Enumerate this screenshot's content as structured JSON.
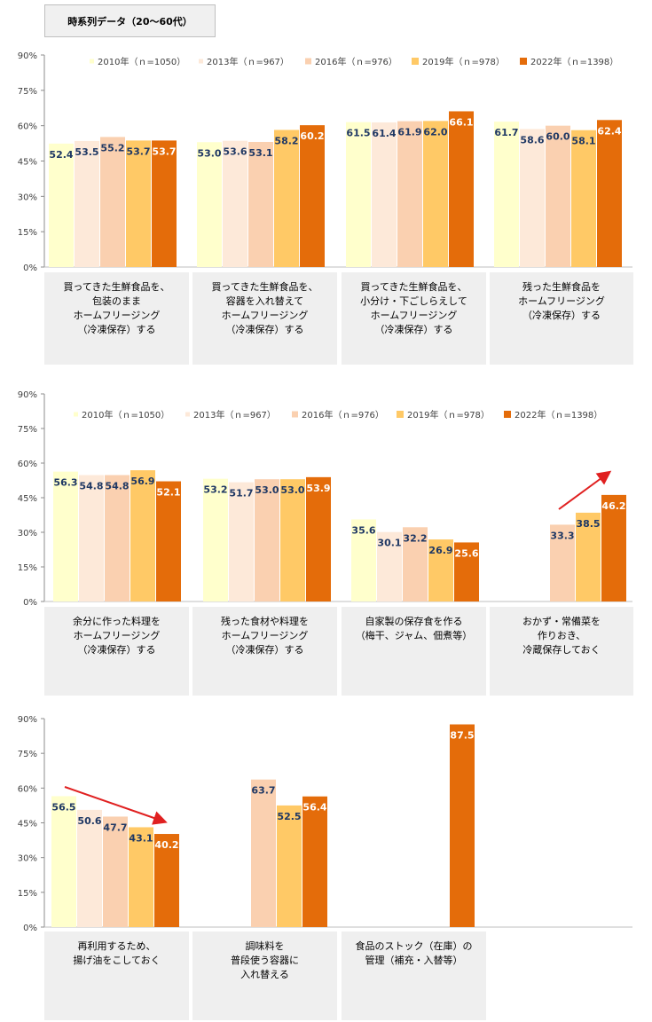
{
  "page_title": "時系列データ（20～60代）",
  "colors": {
    "s2010": "#FFFFCC",
    "s2013": "#FDE9D9",
    "s2016": "#FAD0B0",
    "s2019": "#FFC966",
    "s2022": "#E46C0A",
    "label_dark": "#1F3864",
    "label_light": "#FFFFFF",
    "category_bg": "#EFEFEF",
    "arrow": "#E02020"
  },
  "chart_data": [
    {
      "type": "bar",
      "title": "",
      "ylim": [
        0,
        90
      ],
      "yticks": [
        "0%",
        "15%",
        "30%",
        "45%",
        "60%",
        "75%",
        "90%"
      ],
      "legend": [
        "2010年（ｎ=1050）",
        "2013年（ｎ=967）",
        "2016年（ｎ=976）",
        "2019年（ｎ=978）",
        "2022年（ｎ=1398）"
      ],
      "categories": [
        [
          "買ってきた生鮮食品を、",
          "包装のまま",
          "ホームフリージング",
          "（冷凍保存）する"
        ],
        [
          "買ってきた生鮮食品を、",
          "容器を入れ替えて",
          "ホームフリージング",
          "（冷凍保存）する"
        ],
        [
          "買ってきた生鮮食品を、",
          "小分け・下ごしらえして",
          "ホームフリージング",
          "（冷凍保存）する"
        ],
        [
          "残った生鮮食品を",
          "ホームフリージング",
          "（冷凍保存）する"
        ]
      ],
      "series": [
        {
          "name": "2010年（ｎ=1050）",
          "values": [
            52.4,
            53.0,
            61.5,
            61.7
          ]
        },
        {
          "name": "2013年（ｎ=967）",
          "values": [
            53.5,
            53.6,
            61.4,
            58.6
          ]
        },
        {
          "name": "2016年（ｎ=976）",
          "values": [
            55.2,
            53.1,
            61.9,
            60.0
          ]
        },
        {
          "name": "2019年（ｎ=978）",
          "values": [
            53.7,
            58.2,
            62.0,
            58.1
          ]
        },
        {
          "name": "2022年（ｎ=1398）",
          "values": [
            53.7,
            60.2,
            66.1,
            62.4
          ]
        }
      ],
      "labels": [
        [
          "52.4",
          "53.0",
          "61.5",
          "61.7"
        ],
        [
          "53.5",
          "53.6",
          "61.4",
          "58.6"
        ],
        [
          "55.2",
          "53.1",
          "61.9",
          "60.0"
        ],
        [
          "53.7",
          "58.2",
          "62.0",
          "58.1"
        ],
        [
          "53.7",
          "60.2",
          "66.1",
          "62.4"
        ]
      ]
    },
    {
      "type": "bar",
      "title": "",
      "ylim": [
        0,
        90
      ],
      "yticks": [
        "0%",
        "15%",
        "30%",
        "45%",
        "60%",
        "75%",
        "90%"
      ],
      "legend": [
        "2010年（ｎ=1050）",
        "2013年（ｎ=967）",
        "2016年（ｎ=976）",
        "2019年（ｎ=978）",
        "2022年（ｎ=1398）"
      ],
      "categories": [
        [
          "余分に作った料理を",
          "ホームフリージング",
          "（冷凍保存）する"
        ],
        [
          "残った食材や料理を",
          "ホームフリージング",
          "（冷凍保存）する"
        ],
        [
          "自家製の保存食を作る",
          "（梅干、ジャム、佃煮等）"
        ],
        [
          "おかず・常備菜を",
          "作りおき、",
          "冷蔵保存しておく"
        ]
      ],
      "series": [
        {
          "name": "2010年（ｎ=1050）",
          "values": [
            56.3,
            53.2,
            35.6,
            null
          ]
        },
        {
          "name": "2013年（ｎ=967）",
          "values": [
            54.8,
            51.7,
            30.1,
            null
          ]
        },
        {
          "name": "2016年（ｎ=976）",
          "values": [
            54.8,
            53.0,
            32.2,
            33.3
          ]
        },
        {
          "name": "2019年（ｎ=978）",
          "values": [
            56.9,
            53.0,
            26.9,
            38.5
          ]
        },
        {
          "name": "2022年（ｎ=1398）",
          "values": [
            52.1,
            53.9,
            25.6,
            46.2
          ]
        }
      ],
      "labels": [
        [
          "56.3",
          "53.2",
          "35.6",
          ""
        ],
        [
          "54.8",
          "51.7",
          "30.1",
          ""
        ],
        [
          "54.8",
          "53.0",
          "32.2",
          "33.3"
        ],
        [
          "56.9",
          "53.0",
          "26.9",
          "38.5"
        ],
        [
          "52.1",
          "53.9",
          "25.6",
          "46.2"
        ]
      ],
      "annotations": [
        "up-arrow over おかず・常備菜 (increasing trend)"
      ]
    },
    {
      "type": "bar",
      "title": "",
      "ylim": [
        0,
        90
      ],
      "yticks": [
        "0%",
        "15%",
        "30%",
        "45%",
        "60%",
        "75%",
        "90%"
      ],
      "categories": [
        [
          "再利用するため、",
          "揚げ油をこしておく"
        ],
        [
          "調味料を",
          "普段使う容器に",
          "入れ替える"
        ],
        [
          "食品のストック（在庫）の",
          "管理（補充・入替等）"
        ]
      ],
      "series": [
        {
          "name": "2010年（ｎ=1050）",
          "values": [
            56.5,
            null,
            null
          ]
        },
        {
          "name": "2013年（ｎ=967）",
          "values": [
            50.6,
            null,
            null
          ]
        },
        {
          "name": "2016年（ｎ=976）",
          "values": [
            47.7,
            63.7,
            null
          ]
        },
        {
          "name": "2019年（ｎ=978）",
          "values": [
            43.1,
            52.5,
            null
          ]
        },
        {
          "name": "2022年（ｎ=1398）",
          "values": [
            40.2,
            56.4,
            87.5
          ]
        }
      ],
      "labels": [
        [
          "56.5",
          "",
          ""
        ],
        [
          "50.6",
          "",
          ""
        ],
        [
          "47.7",
          "63.7",
          ""
        ],
        [
          "43.1",
          "52.5",
          ""
        ],
        [
          "40.2",
          "56.4",
          "87.5"
        ]
      ],
      "annotations": [
        "down-arrow over 揚げ油 (decreasing trend)"
      ]
    }
  ]
}
